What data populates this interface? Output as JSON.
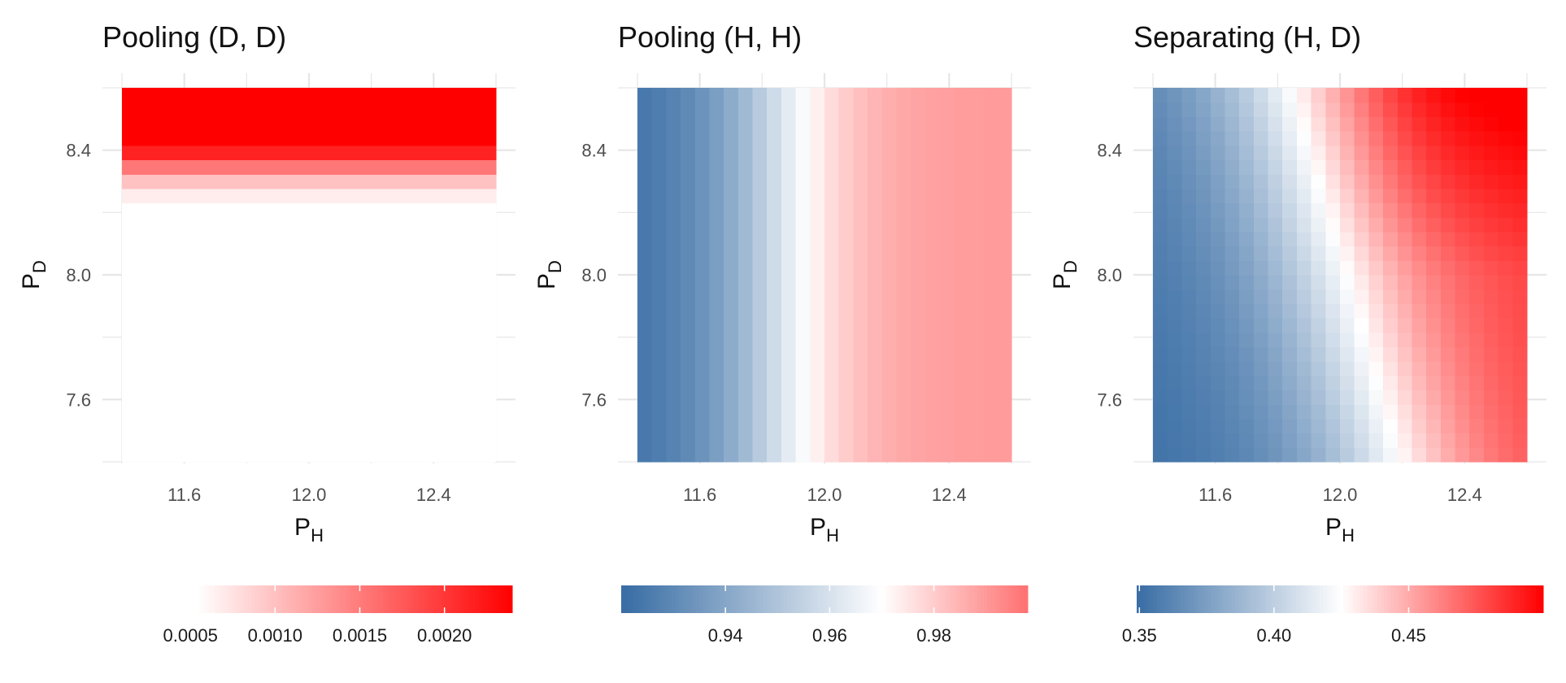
{
  "chart_data": [
    {
      "type": "heatmap",
      "title": "Pooling (D, D)",
      "xlabel": {
        "main": "P",
        "sub": "H"
      },
      "ylabel": {
        "main": "P",
        "sub": "D"
      },
      "xlim": [
        11.4,
        12.6
      ],
      "ylim": [
        7.4,
        8.6
      ],
      "xticks": [
        11.6,
        12.0,
        12.4
      ],
      "yticks": [
        7.6,
        8.0,
        8.4
      ],
      "xtick_labels": [
        "11.6",
        "12.0",
        "12.4"
      ],
      "ytick_labels": [
        "7.6",
        "8.0",
        "8.4"
      ],
      "legend": {
        "position": "bottom",
        "range": [
          0.0,
          0.0024
        ],
        "midpoint": 0.00054,
        "ticks": [
          0.0005,
          0.001,
          0.0015,
          0.002
        ],
        "tick_labels": [
          "0.0005",
          "0.0010",
          "0.0015",
          "0.0020"
        ]
      },
      "value_model": {
        "kind": "y_sigmoid",
        "base": 0.0,
        "base_slope": 0.0013,
        "amp": 0.0024,
        "center": 8.36,
        "width": 0.045
      },
      "colors": {
        "low": "#3a6ea5",
        "mid": "#ffffff",
        "high": "#ff0000",
        "low_anchor": 0.0026
      }
    },
    {
      "type": "heatmap",
      "title": "Pooling (H, H)",
      "xlabel": {
        "main": "P",
        "sub": "H"
      },
      "ylabel": {
        "main": "P",
        "sub": "D"
      },
      "xlim": [
        11.4,
        12.6
      ],
      "ylim": [
        7.4,
        8.6
      ],
      "xticks": [
        11.6,
        12.0,
        12.4
      ],
      "yticks": [
        7.6,
        8.0,
        8.4
      ],
      "xtick_labels": [
        "11.6",
        "12.0",
        "12.4"
      ],
      "ytick_labels": [
        "7.6",
        "8.0",
        "8.4"
      ],
      "legend": {
        "position": "bottom",
        "range": [
          0.92,
          0.998
        ],
        "midpoint": 0.97,
        "ticks": [
          0.94,
          0.96,
          0.98
        ],
        "tick_labels": [
          "0.94",
          "0.96",
          "0.98"
        ]
      },
      "value_model": {
        "kind": "x_sigmoid",
        "low": 0.921,
        "high": 0.99,
        "center": 11.82,
        "width": 0.14
      },
      "colors": {
        "low": "#3a6ea5",
        "mid": "#ffffff",
        "high": "#ff0000",
        "low_anchor": 0.921,
        "high_anchor": 1.02
      }
    },
    {
      "type": "heatmap",
      "title": "Separating (H, D)",
      "xlabel": {
        "main": "P",
        "sub": "H"
      },
      "ylabel": {
        "main": "P",
        "sub": "D"
      },
      "xlim": [
        11.4,
        12.6
      ],
      "ylim": [
        7.4,
        8.6
      ],
      "xticks": [
        11.6,
        12.0,
        12.4
      ],
      "yticks": [
        7.6,
        8.0,
        8.4
      ],
      "xtick_labels": [
        "11.6",
        "12.0",
        "12.4"
      ],
      "ytick_labels": [
        "7.6",
        "8.0",
        "8.4"
      ],
      "legend": {
        "position": "bottom",
        "range": [
          0.349,
          0.5
        ],
        "midpoint": 0.425,
        "ticks": [
          0.35,
          0.4,
          0.45
        ],
        "tick_labels": [
          "0.35",
          "0.40",
          "0.45"
        ]
      },
      "value_model": {
        "kind": "xy_sigmoid",
        "low": 0.35,
        "high": 0.485,
        "x_center": 11.98,
        "x_shift_per_y": -0.28,
        "y_ref": 8.0,
        "width": 0.2,
        "y_boost": 0.04,
        "boost_x": 12.1
      },
      "colors": {
        "low": "#3a6ea5",
        "mid": "#ffffff",
        "high": "#ff0000",
        "low_anchor": 0.35,
        "high_anchor": 0.5
      }
    }
  ]
}
